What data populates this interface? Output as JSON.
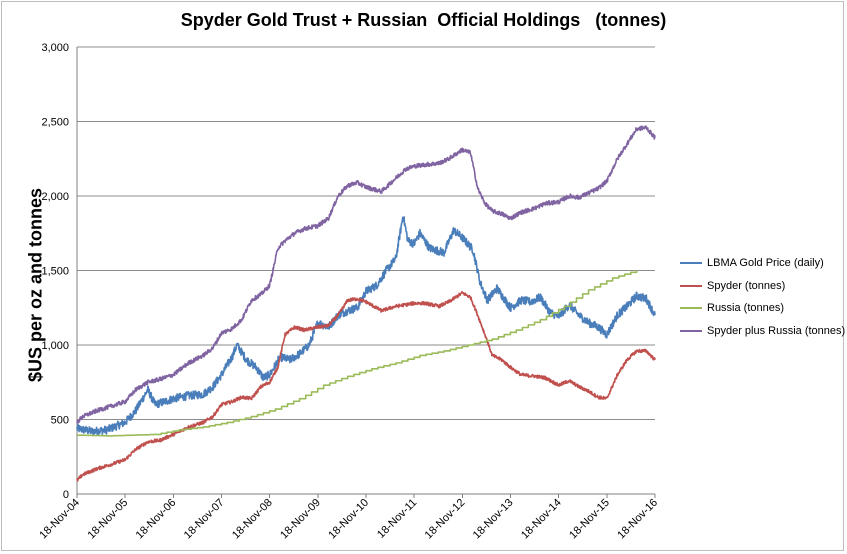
{
  "chart_data": {
    "type": "line",
    "title": "Spyder Gold Trust + Russian  Official Holdings   (tonnes)",
    "ylabel": "$US per oz and tonnes",
    "xlabel": "",
    "ylim": [
      0,
      3000
    ],
    "yticks": [
      0,
      500,
      1000,
      1500,
      2000,
      2500,
      3000
    ],
    "ytick_labels": [
      "0",
      "500",
      "1,000",
      "1,500",
      "2,000",
      "2,500",
      "3,000"
    ],
    "xtick_labels": [
      "18-Nov-04",
      "18-Nov-05",
      "18-Nov-06",
      "18-Nov-07",
      "18-Nov-08",
      "18-Nov-09",
      "18-Nov-10",
      "18-Nov-11",
      "18-Nov-12",
      "18-Nov-13",
      "18-Nov-14",
      "18-Nov-15",
      "18-Nov-16"
    ],
    "x_range_years": [
      2004.88,
      2016.88
    ],
    "grid": true,
    "legend": "right",
    "series": [
      {
        "name": "LBMA Gold Price (daily)",
        "color": "#4a7ebb",
        "points": [
          [
            2004.88,
            440
          ],
          [
            2005.2,
            420
          ],
          [
            2005.5,
            430
          ],
          [
            2005.88,
            480
          ],
          [
            2006.1,
            560
          ],
          [
            2006.35,
            700
          ],
          [
            2006.5,
            600
          ],
          [
            2006.7,
            620
          ],
          [
            2006.88,
            640
          ],
          [
            2007.2,
            660
          ],
          [
            2007.5,
            670
          ],
          [
            2007.7,
            720
          ],
          [
            2007.88,
            800
          ],
          [
            2008.1,
            920
          ],
          [
            2008.2,
            1000
          ],
          [
            2008.4,
            900
          ],
          [
            2008.6,
            850
          ],
          [
            2008.75,
            780
          ],
          [
            2008.88,
            800
          ],
          [
            2009.1,
            920
          ],
          [
            2009.3,
            900
          ],
          [
            2009.5,
            940
          ],
          [
            2009.7,
            1000
          ],
          [
            2009.88,
            1150
          ],
          [
            2010.1,
            1120
          ],
          [
            2010.3,
            1200
          ],
          [
            2010.5,
            1230
          ],
          [
            2010.7,
            1250
          ],
          [
            2010.88,
            1360
          ],
          [
            2011.1,
            1400
          ],
          [
            2011.3,
            1500
          ],
          [
            2011.5,
            1580
          ],
          [
            2011.65,
            1870
          ],
          [
            2011.75,
            1700
          ],
          [
            2011.88,
            1680
          ],
          [
            2012.0,
            1750
          ],
          [
            2012.2,
            1650
          ],
          [
            2012.5,
            1620
          ],
          [
            2012.7,
            1770
          ],
          [
            2012.88,
            1720
          ],
          [
            2013.1,
            1640
          ],
          [
            2013.25,
            1420
          ],
          [
            2013.4,
            1300
          ],
          [
            2013.6,
            1380
          ],
          [
            2013.88,
            1250
          ],
          [
            2014.1,
            1300
          ],
          [
            2014.3,
            1290
          ],
          [
            2014.5,
            1320
          ],
          [
            2014.7,
            1220
          ],
          [
            2014.88,
            1190
          ],
          [
            2015.1,
            1270
          ],
          [
            2015.3,
            1200
          ],
          [
            2015.5,
            1150
          ],
          [
            2015.7,
            1120
          ],
          [
            2015.88,
            1070
          ],
          [
            2016.1,
            1200
          ],
          [
            2016.3,
            1260
          ],
          [
            2016.5,
            1330
          ],
          [
            2016.7,
            1310
          ],
          [
            2016.88,
            1200
          ]
        ]
      },
      {
        "name": "Spyder  (tonnes)",
        "color": "#c0504d",
        "points": [
          [
            2004.88,
            90
          ],
          [
            2005.0,
            130
          ],
          [
            2005.3,
            170
          ],
          [
            2005.6,
            200
          ],
          [
            2005.88,
            230
          ],
          [
            2006.1,
            300
          ],
          [
            2006.35,
            350
          ],
          [
            2006.6,
            360
          ],
          [
            2006.88,
            400
          ],
          [
            2007.2,
            450
          ],
          [
            2007.5,
            480
          ],
          [
            2007.7,
            520
          ],
          [
            2007.88,
            600
          ],
          [
            2008.1,
            620
          ],
          [
            2008.3,
            650
          ],
          [
            2008.5,
            640
          ],
          [
            2008.7,
            720
          ],
          [
            2008.88,
            750
          ],
          [
            2009.05,
            850
          ],
          [
            2009.2,
            1070
          ],
          [
            2009.4,
            1120
          ],
          [
            2009.6,
            1100
          ],
          [
            2009.88,
            1120
          ],
          [
            2010.1,
            1130
          ],
          [
            2010.3,
            1200
          ],
          [
            2010.5,
            1300
          ],
          [
            2010.7,
            1310
          ],
          [
            2010.88,
            1290
          ],
          [
            2011.2,
            1230
          ],
          [
            2011.5,
            1260
          ],
          [
            2011.7,
            1270
          ],
          [
            2011.88,
            1280
          ],
          [
            2012.1,
            1280
          ],
          [
            2012.4,
            1260
          ],
          [
            2012.6,
            1290
          ],
          [
            2012.88,
            1350
          ],
          [
            2013.05,
            1320
          ],
          [
            2013.2,
            1200
          ],
          [
            2013.35,
            1070
          ],
          [
            2013.5,
            930
          ],
          [
            2013.7,
            900
          ],
          [
            2013.88,
            850
          ],
          [
            2014.1,
            800
          ],
          [
            2014.4,
            790
          ],
          [
            2014.6,
            780
          ],
          [
            2014.88,
            730
          ],
          [
            2015.1,
            760
          ],
          [
            2015.3,
            720
          ],
          [
            2015.5,
            690
          ],
          [
            2015.7,
            650
          ],
          [
            2015.88,
            640
          ],
          [
            2016.1,
            800
          ],
          [
            2016.3,
            900
          ],
          [
            2016.5,
            960
          ],
          [
            2016.7,
            960
          ],
          [
            2016.88,
            900
          ]
        ]
      },
      {
        "name": "Russia (tonnes)",
        "color": "#9bbb59",
        "points": [
          [
            2004.88,
            395
          ],
          [
            2005.5,
            390
          ],
          [
            2006.0,
            395
          ],
          [
            2006.5,
            400
          ],
          [
            2007.0,
            430
          ],
          [
            2007.5,
            450
          ],
          [
            2008.0,
            480
          ],
          [
            2008.5,
            520
          ],
          [
            2009.0,
            570
          ],
          [
            2009.5,
            640
          ],
          [
            2010.0,
            730
          ],
          [
            2010.5,
            790
          ],
          [
            2011.0,
            840
          ],
          [
            2011.5,
            880
          ],
          [
            2012.0,
            930
          ],
          [
            2012.5,
            960
          ],
          [
            2013.0,
            1000
          ],
          [
            2013.5,
            1040
          ],
          [
            2014.0,
            1100
          ],
          [
            2014.5,
            1170
          ],
          [
            2015.0,
            1260
          ],
          [
            2015.5,
            1370
          ],
          [
            2016.0,
            1450
          ],
          [
            2016.5,
            1500
          ]
        ]
      },
      {
        "name": "Spyder plus Russia (tonnes)",
        "color": "#8064a2",
        "points": [
          [
            2004.88,
            480
          ],
          [
            2005.0,
            520
          ],
          [
            2005.3,
            560
          ],
          [
            2005.6,
            590
          ],
          [
            2005.88,
            620
          ],
          [
            2006.1,
            700
          ],
          [
            2006.35,
            750
          ],
          [
            2006.6,
            770
          ],
          [
            2006.88,
            800
          ],
          [
            2007.2,
            880
          ],
          [
            2007.5,
            930
          ],
          [
            2007.7,
            980
          ],
          [
            2007.88,
            1080
          ],
          [
            2008.1,
            1110
          ],
          [
            2008.3,
            1170
          ],
          [
            2008.5,
            1300
          ],
          [
            2008.7,
            1340
          ],
          [
            2008.88,
            1400
          ],
          [
            2009.05,
            1650
          ],
          [
            2009.2,
            1700
          ],
          [
            2009.4,
            1750
          ],
          [
            2009.6,
            1780
          ],
          [
            2009.88,
            1800
          ],
          [
            2010.1,
            1850
          ],
          [
            2010.3,
            2000
          ],
          [
            2010.5,
            2070
          ],
          [
            2010.7,
            2090
          ],
          [
            2010.88,
            2060
          ],
          [
            2011.2,
            2030
          ],
          [
            2011.5,
            2120
          ],
          [
            2011.7,
            2180
          ],
          [
            2011.88,
            2200
          ],
          [
            2012.1,
            2210
          ],
          [
            2012.4,
            2220
          ],
          [
            2012.6,
            2250
          ],
          [
            2012.88,
            2310
          ],
          [
            2013.05,
            2290
          ],
          [
            2013.2,
            2050
          ],
          [
            2013.35,
            1950
          ],
          [
            2013.5,
            1900
          ],
          [
            2013.7,
            1880
          ],
          [
            2013.88,
            1850
          ],
          [
            2014.1,
            1890
          ],
          [
            2014.4,
            1920
          ],
          [
            2014.6,
            1950
          ],
          [
            2014.88,
            1960
          ],
          [
            2015.1,
            2000
          ],
          [
            2015.3,
            1990
          ],
          [
            2015.5,
            2020
          ],
          [
            2015.7,
            2050
          ],
          [
            2015.88,
            2100
          ],
          [
            2016.1,
            2250
          ],
          [
            2016.3,
            2350
          ],
          [
            2016.5,
            2450
          ],
          [
            2016.7,
            2460
          ],
          [
            2016.88,
            2390
          ]
        ]
      }
    ]
  }
}
